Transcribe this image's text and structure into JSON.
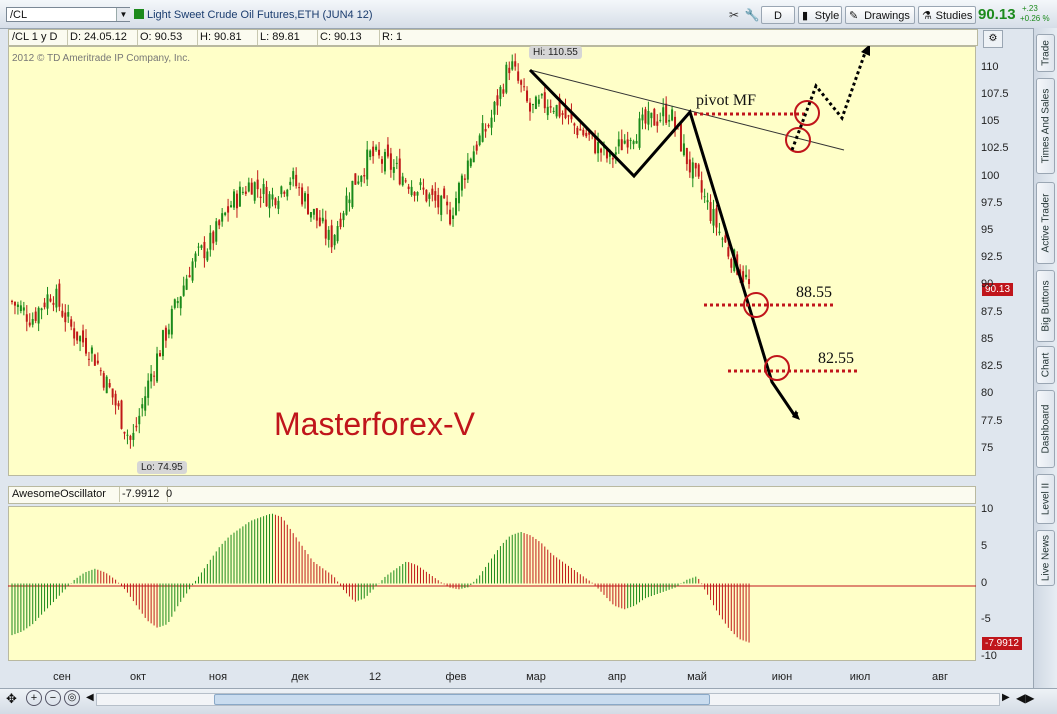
{
  "toolbar": {
    "symbol": "/CL",
    "description": "Light Sweet Crude Oil Futures,ETH (JUN4 12)",
    "period_button": "D",
    "style_label": "Style",
    "drawings_label": "Drawings",
    "studies_label": "Studies",
    "last_price": "90.13",
    "change_abs": "+.23",
    "change_pct": "+0.26 %"
  },
  "info": {
    "symbol_period": "/CL 1 y D",
    "date": "D: 24.05.12",
    "open": "O: 90.53",
    "high": "H: 90.81",
    "low": "L: 89.81",
    "close": "C: 90.13",
    "range": "R: 1"
  },
  "chart": {
    "copyright": "2012 © TD Ameritrade IP Company, Inc.",
    "watermark": "Masterforex-V",
    "hi_badge": "Hi: 110.55",
    "lo_badge": "Lo: 74.95",
    "last_price_badge": "90.13",
    "annotation_pivot": "pivot MF",
    "annotation_target1": "88.55",
    "annotation_target2": "82.55"
  },
  "oscillator": {
    "name": "AwesomeOscillator",
    "value": "-7.9912",
    "param": "0",
    "value_badge": "-7.9912"
  },
  "sidebar_tabs": [
    "Trade",
    "Times And Sales",
    "Active Trader",
    "Big Buttons",
    "Chart",
    "Dashboard",
    "Level II",
    "Live News"
  ],
  "colors": {
    "up": "#1a8a1a",
    "down": "#c01818",
    "background": "#ffffc8",
    "circle": "#c0151b"
  },
  "chart_data": {
    "type": "candlestick",
    "y_ticks": [
      "110",
      "107.5",
      "105",
      "102.5",
      "100",
      "97.5",
      "95",
      "92.5",
      "90",
      "87.5",
      "85",
      "82.5",
      "80",
      "77.5",
      "75"
    ],
    "ylim": [
      72.5,
      112
    ],
    "x_ticks": [
      "сен",
      "окт",
      "ноя",
      "дек",
      "12",
      "фев",
      "мар",
      "апр",
      "май",
      "июн",
      "июл",
      "авг"
    ],
    "hi": 110.55,
    "lo": 74.95,
    "last": 90.13,
    "close_path": [
      {
        "x": "сен",
        "y": 88.5
      },
      {
        "x": "сен",
        "y": 87
      },
      {
        "x": "сен",
        "y": 89.5
      },
      {
        "x": "сен",
        "y": 86
      },
      {
        "x": "окт",
        "y": 84
      },
      {
        "x": "окт",
        "y": 80
      },
      {
        "x": "окт",
        "y": 75.5
      },
      {
        "x": "окт",
        "y": 82
      },
      {
        "x": "окт",
        "y": 87
      },
      {
        "x": "ноя",
        "y": 92
      },
      {
        "x": "ноя",
        "y": 94
      },
      {
        "x": "ноя",
        "y": 97.5
      },
      {
        "x": "ноя",
        "y": 99.5
      },
      {
        "x": "ноя",
        "y": 98
      },
      {
        "x": "дек",
        "y": 100
      },
      {
        "x": "дек",
        "y": 97
      },
      {
        "x": "дек",
        "y": 94
      },
      {
        "x": "дек",
        "y": 99
      },
      {
        "x": "12",
        "y": 102
      },
      {
        "x": "12",
        "y": 101
      },
      {
        "x": "12",
        "y": 99.5
      },
      {
        "x": "фев",
        "y": 98
      },
      {
        "x": "фев",
        "y": 96.5
      },
      {
        "x": "фев",
        "y": 102
      },
      {
        "x": "фев",
        "y": 105
      },
      {
        "x": "мар",
        "y": 110.5
      },
      {
        "x": "мар",
        "y": 106
      },
      {
        "x": "мар",
        "y": 107
      },
      {
        "x": "мар",
        "y": 105
      },
      {
        "x": "апр",
        "y": 103.5
      },
      {
        "x": "апр",
        "y": 101.5
      },
      {
        "x": "апр",
        "y": 104
      },
      {
        "x": "апр",
        "y": 105
      },
      {
        "x": "май",
        "y": 106
      },
      {
        "x": "май",
        "y": 101
      },
      {
        "x": "май",
        "y": 97
      },
      {
        "x": "май",
        "y": 93
      },
      {
        "x": "май",
        "y": 90.1
      }
    ],
    "oscillator": {
      "y_ticks": [
        "10",
        "5",
        "0",
        "-5",
        "-10"
      ],
      "ylim": [
        -10.5,
        10.5
      ],
      "values": [
        -7,
        -6.5,
        -5.5,
        -4,
        -2.5,
        -1,
        0.5,
        1.5,
        2,
        1.5,
        0.5,
        -1,
        -3,
        -5,
        -6,
        -5.5,
        -3,
        -1,
        1,
        3,
        5,
        6.5,
        7.5,
        8.5,
        9,
        9.5,
        9,
        7,
        5,
        3,
        2,
        1,
        -1,
        -2.5,
        -2,
        -0.5,
        1,
        2,
        3,
        2.5,
        1.5,
        0.5,
        -0.5,
        -0.8,
        -0.5,
        1,
        3,
        5,
        6.5,
        7,
        6.5,
        5.5,
        4,
        3,
        2,
        1,
        0,
        -1.5,
        -3,
        -3.5,
        -3,
        -2,
        -1.5,
        -1,
        -0.5,
        0.5,
        1,
        -1.5,
        -4,
        -6,
        -7.5,
        -8
      ]
    },
    "annotations": [
      {
        "label": "pivot MF",
        "y": 106.2
      },
      {
        "label": "88.55",
        "y": 88.55
      },
      {
        "label": "82.55",
        "y": 82.55
      }
    ]
  }
}
